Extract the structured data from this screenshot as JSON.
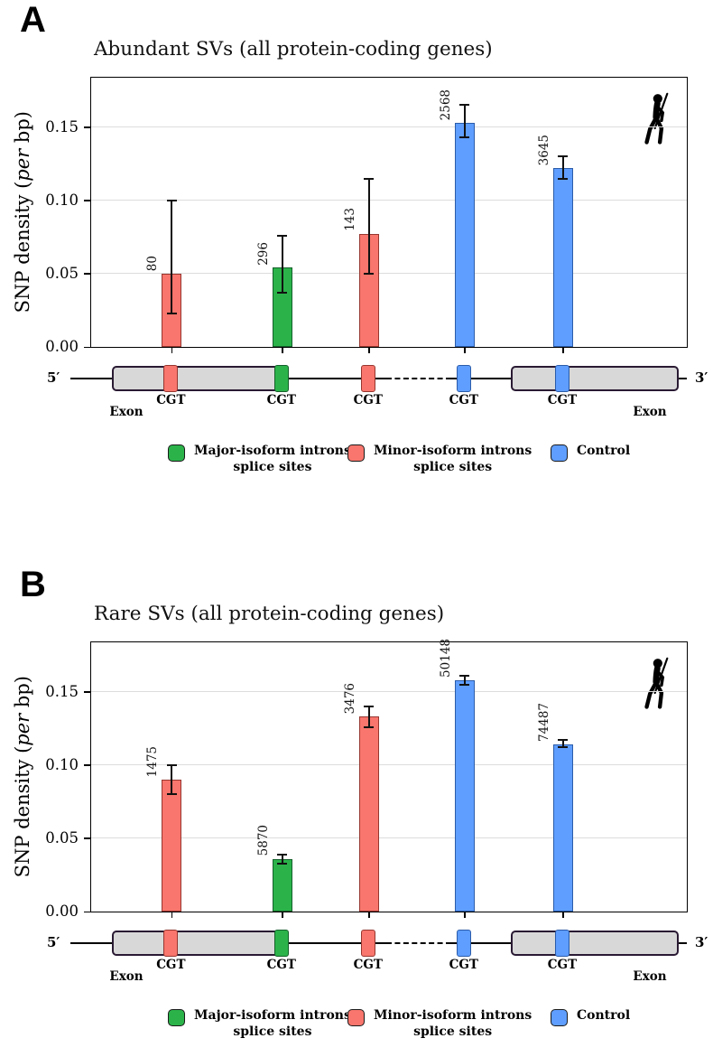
{
  "panels": [
    {
      "label": "A"
    },
    {
      "label": "B"
    }
  ],
  "axis": {
    "ylabel_pre": "SNP density (",
    "ylabel_italic": "per",
    "ylabel_post": " bp)"
  },
  "chart_data": [
    {
      "type": "bar",
      "title": "Abundant SVs (all protein-coding genes)",
      "ylabel": "SNP density (per bp)",
      "ylim": [
        0,
        0.185
      ],
      "yticks": [
        0,
        0.05,
        0.1,
        0.15
      ],
      "ytick_labels": [
        "0.00",
        "0.05",
        "0.10",
        "0.15"
      ],
      "grid": true,
      "bars": [
        {
          "group": "minor",
          "n": "80",
          "value": 0.05,
          "err_low": 0.023,
          "err_high": 0.1
        },
        {
          "group": "major",
          "n": "296",
          "value": 0.054,
          "err_low": 0.037,
          "err_high": 0.076
        },
        {
          "group": "minor",
          "n": "143",
          "value": 0.077,
          "err_low": 0.05,
          "err_high": 0.115
        },
        {
          "group": "control",
          "n": "2568",
          "value": 0.153,
          "err_low": 0.143,
          "err_high": 0.165
        },
        {
          "group": "control",
          "n": "3645",
          "value": 0.122,
          "err_low": 0.115,
          "err_high": 0.13
        }
      ]
    },
    {
      "type": "bar",
      "title": "Rare SVs (all protein-coding genes)",
      "ylabel": "SNP density (per bp)",
      "ylim": [
        0,
        0.185
      ],
      "yticks": [
        0,
        0.05,
        0.1,
        0.15
      ],
      "ytick_labels": [
        "0.00",
        "0.05",
        "0.10",
        "0.15"
      ],
      "grid": true,
      "bars": [
        {
          "group": "minor",
          "n": "1475",
          "value": 0.09,
          "err_low": 0.08,
          "err_high": 0.1
        },
        {
          "group": "major",
          "n": "5870",
          "value": 0.036,
          "err_low": 0.033,
          "err_high": 0.039
        },
        {
          "group": "minor",
          "n": "3476",
          "value": 0.133,
          "err_low": 0.126,
          "err_high": 0.14
        },
        {
          "group": "control",
          "n": "50148",
          "value": 0.158,
          "err_low": 0.155,
          "err_high": 0.161
        },
        {
          "group": "control",
          "n": "74487",
          "value": 0.114,
          "err_low": 0.112,
          "err_high": 0.117
        }
      ]
    }
  ],
  "colors": {
    "major": {
      "fill": "#2BB34A",
      "border": "#14602A"
    },
    "minor": {
      "fill": "#F8766D",
      "border": "#96362F"
    },
    "control": {
      "fill": "#5F9EFF",
      "border": "#2B5CA9"
    },
    "exon_fill": "#D8D8D8",
    "exon_border": "#2A1A33",
    "grid": "#DDDDDD"
  },
  "diagram": {
    "five_prime": "5′",
    "three_prime": "3′",
    "exon_label": "Exon",
    "site_label": "CGT",
    "band_groups": [
      "minor",
      "major",
      "minor",
      "control",
      "control"
    ]
  },
  "legend": [
    {
      "key": "major",
      "label": "Major-isoform introns\nsplice sites"
    },
    {
      "key": "minor",
      "label": "Minor-isoform introns\nsplice sites"
    },
    {
      "key": "control",
      "label": "Control"
    }
  ],
  "icons": {
    "human": "human-silhouette"
  }
}
